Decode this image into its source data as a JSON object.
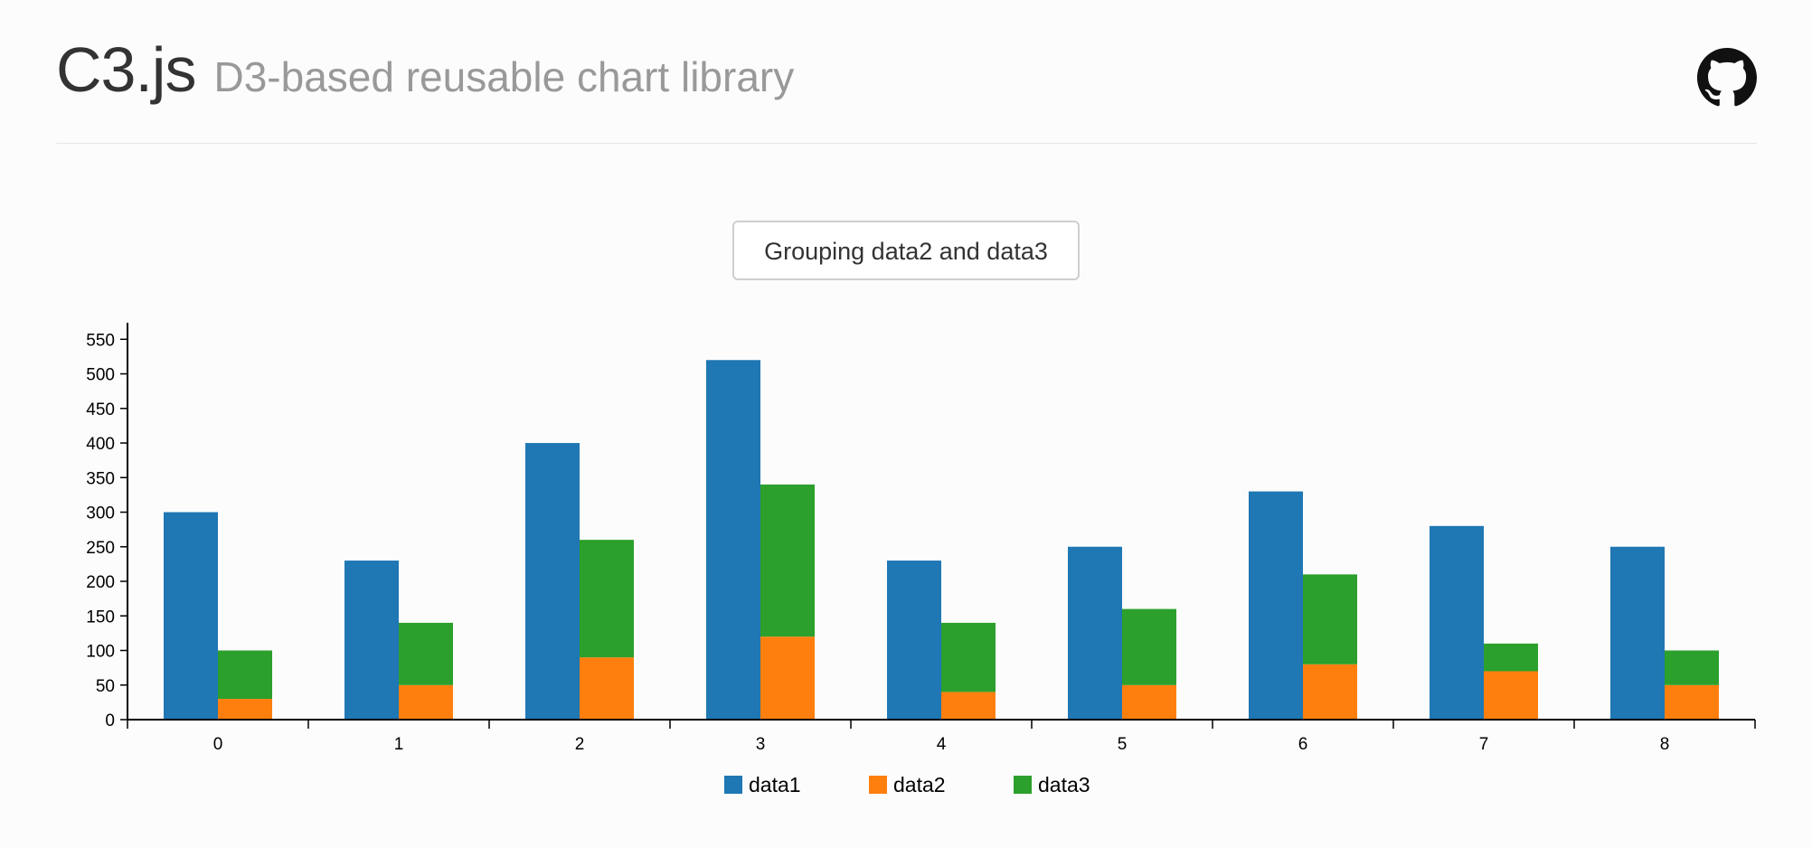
{
  "header": {
    "title": "C3.js",
    "subtitle": "D3-based reusable chart library",
    "github_icon": "github-icon"
  },
  "controls": {
    "group_button_label": "Grouping data2 and data3"
  },
  "chart_data": {
    "type": "bar",
    "categories": [
      "0",
      "1",
      "2",
      "3",
      "4",
      "5",
      "6",
      "7",
      "8"
    ],
    "series": [
      {
        "name": "data1",
        "color": "#1f77b4",
        "values": [
          300,
          230,
          400,
          520,
          230,
          250,
          330,
          280,
          250
        ]
      },
      {
        "name": "data2",
        "color": "#ff7f0e",
        "values": [
          30,
          50,
          90,
          120,
          40,
          50,
          80,
          70,
          50
        ]
      },
      {
        "name": "data3",
        "color": "#2ca02c",
        "values": [
          70,
          90,
          170,
          220,
          100,
          110,
          130,
          40,
          50
        ]
      }
    ],
    "groups": [
      [
        "data2",
        "data3"
      ]
    ],
    "yticks": [
      0,
      50,
      100,
      150,
      200,
      250,
      300,
      350,
      400,
      450,
      500,
      550
    ],
    "ylim": [
      0,
      570
    ],
    "legend_position": "bottom",
    "grid": false
  }
}
